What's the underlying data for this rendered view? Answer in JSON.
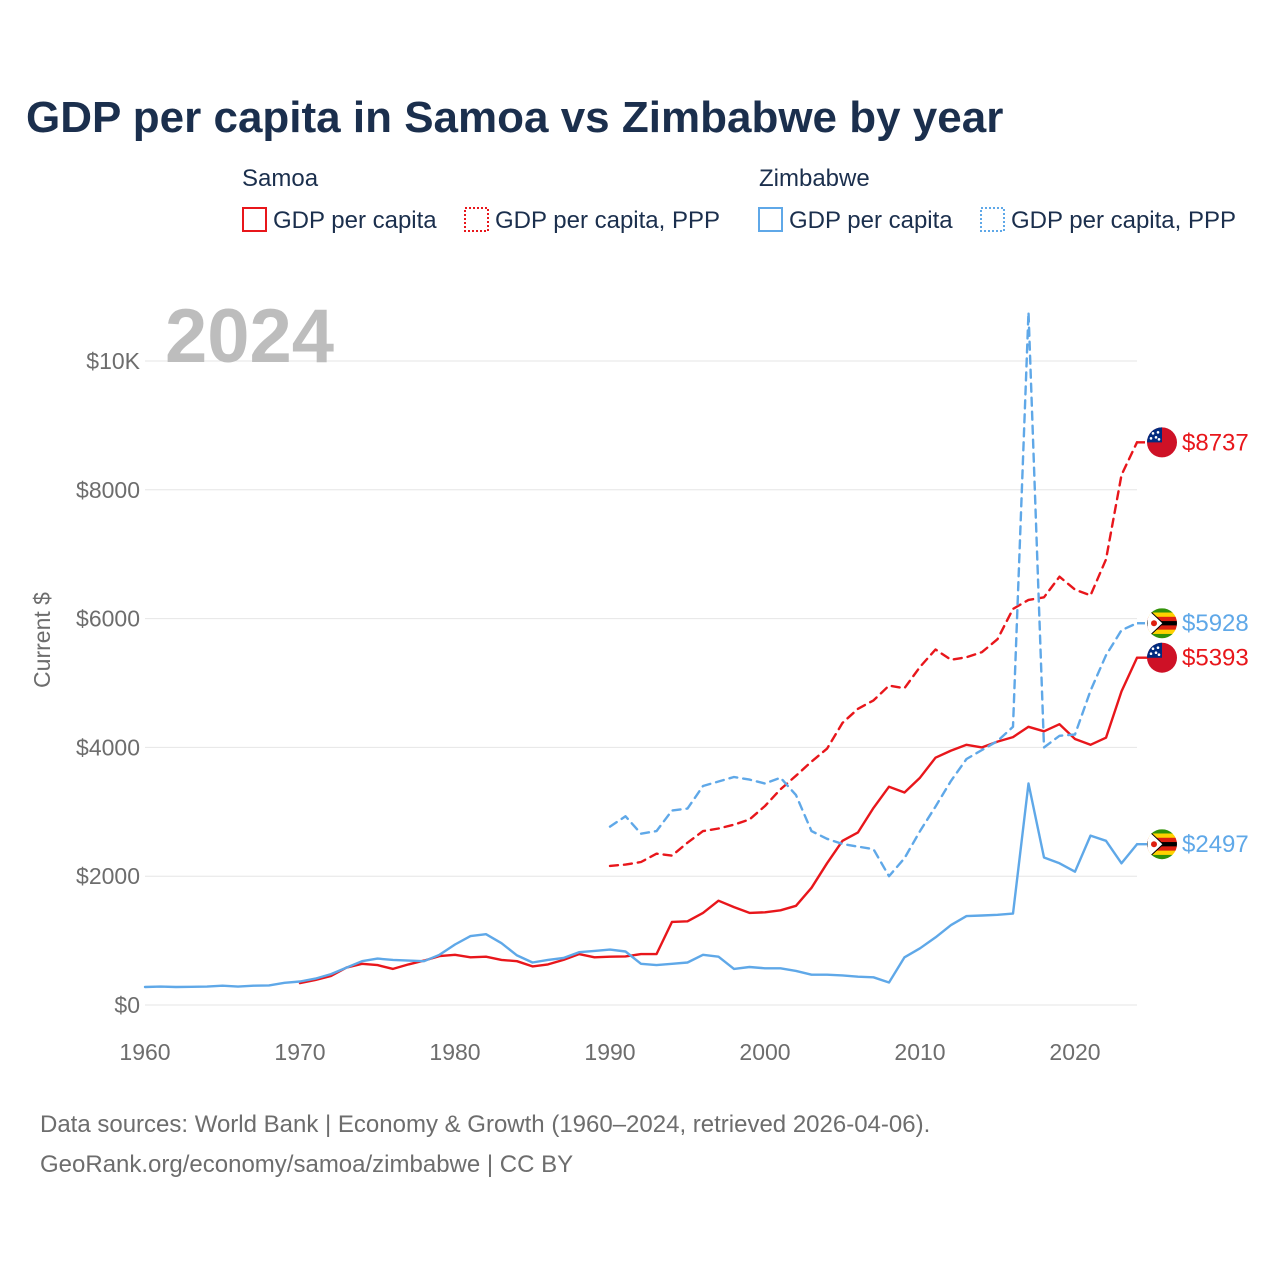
{
  "title": "GDP per capita in Samoa vs Zimbabwe by year",
  "year_watermark": "2024",
  "legend": {
    "groups": [
      {
        "name": "Samoa",
        "color": "#e8161b",
        "items": [
          {
            "label": "GDP per capita",
            "style": "solid"
          },
          {
            "label": "GDP per capita, PPP",
            "style": "dotted"
          }
        ]
      },
      {
        "name": "Zimbabwe",
        "color": "#5fa8e8",
        "items": [
          {
            "label": "GDP per capita",
            "style": "solid"
          },
          {
            "label": "GDP per capita, PPP",
            "style": "dotted"
          }
        ]
      }
    ]
  },
  "source": {
    "line1": "Data sources: World Bank | Economy & Growth (1960–2024, retrieved 2026-04-06).",
    "line2": "GeoRank.org/economy/samoa/zimbabwe | CC BY"
  },
  "chart_data": {
    "type": "line",
    "title": "GDP per capita in Samoa vs Zimbabwe by year",
    "ylabel": "Current $",
    "xlabel": "",
    "xlim": [
      1960,
      2024
    ],
    "ylim": [
      0,
      10500
    ],
    "x_ticks": [
      1960,
      1970,
      1980,
      1990,
      2000,
      2010,
      2020
    ],
    "x_tick_labels": [
      "1960",
      "1970",
      "1980",
      "1990",
      "2000",
      "2010",
      "2020"
    ],
    "y_ticks": [
      0,
      2000,
      4000,
      6000,
      8000,
      10000
    ],
    "y_tick_labels": [
      "$0",
      "$2000",
      "$4000",
      "$6000",
      "$8000",
      "$10K"
    ],
    "grid": true,
    "series": [
      {
        "name": "Samoa GDP per capita",
        "country": "Samoa",
        "color": "#e8161b",
        "dash": "solid",
        "end_label": "$5393",
        "x": [
          1970,
          1971,
          1972,
          1973,
          1974,
          1975,
          1976,
          1977,
          1978,
          1979,
          1980,
          1981,
          1982,
          1983,
          1984,
          1985,
          1986,
          1987,
          1988,
          1989,
          1990,
          1991,
          1992,
          1993,
          1994,
          1995,
          1996,
          1997,
          1998,
          1999,
          2000,
          2001,
          2002,
          2003,
          2004,
          2005,
          2006,
          2007,
          2008,
          2009,
          2010,
          2011,
          2012,
          2013,
          2014,
          2015,
          2016,
          2017,
          2018,
          2019,
          2020,
          2021,
          2022,
          2023,
          2024
        ],
        "values": [
          340,
          390,
          450,
          580,
          640,
          620,
          560,
          630,
          690,
          760,
          780,
          740,
          750,
          700,
          680,
          600,
          630,
          700,
          790,
          740,
          750,
          755,
          790,
          790,
          1290,
          1300,
          1430,
          1620,
          1520,
          1430,
          1440,
          1470,
          1540,
          1820,
          2200,
          2550,
          2680,
          3060,
          3390,
          3300,
          3530,
          3840,
          3950,
          4040,
          4000,
          4090,
          4160,
          4320,
          4250,
          4360,
          4130,
          4040,
          4150,
          4870,
          5393
        ]
      },
      {
        "name": "Samoa GDP per capita, PPP",
        "country": "Samoa",
        "color": "#e8161b",
        "dash": "dashed",
        "end_label": "$8737",
        "x": [
          1990,
          1991,
          1992,
          1993,
          1994,
          1995,
          1996,
          1997,
          1998,
          1999,
          2000,
          2001,
          2002,
          2003,
          2004,
          2005,
          2006,
          2007,
          2008,
          2009,
          2010,
          2011,
          2012,
          2013,
          2014,
          2015,
          2016,
          2017,
          2018,
          2019,
          2020,
          2021,
          2022,
          2023,
          2024
        ],
        "values": [
          2160,
          2180,
          2220,
          2350,
          2320,
          2520,
          2700,
          2740,
          2800,
          2880,
          3090,
          3350,
          3560,
          3780,
          3980,
          4380,
          4600,
          4730,
          4960,
          4920,
          5250,
          5520,
          5360,
          5400,
          5480,
          5680,
          6150,
          6290,
          6330,
          6650,
          6450,
          6360,
          6920,
          8230,
          8737
        ]
      },
      {
        "name": "Zimbabwe GDP per capita",
        "country": "Zimbabwe",
        "color": "#5fa8e8",
        "dash": "solid",
        "end_label": "$2497",
        "x": [
          1960,
          1961,
          1962,
          1963,
          1964,
          1965,
          1966,
          1967,
          1968,
          1969,
          1970,
          1971,
          1972,
          1973,
          1974,
          1975,
          1976,
          1977,
          1978,
          1979,
          1980,
          1981,
          1982,
          1983,
          1984,
          1985,
          1986,
          1987,
          1988,
          1989,
          1990,
          1991,
          1992,
          1993,
          1994,
          1995,
          1996,
          1997,
          1998,
          1999,
          2000,
          2001,
          2002,
          2003,
          2004,
          2005,
          2006,
          2007,
          2008,
          2009,
          2010,
          2011,
          2012,
          2013,
          2014,
          2015,
          2016,
          2017,
          2018,
          2019,
          2020,
          2021,
          2022,
          2023,
          2024
        ],
        "values": [
          280,
          285,
          280,
          282,
          285,
          300,
          285,
          300,
          305,
          345,
          365,
          410,
          480,
          580,
          680,
          720,
          700,
          690,
          680,
          780,
          940,
          1070,
          1100,
          960,
          770,
          660,
          700,
          730,
          820,
          840,
          860,
          830,
          640,
          620,
          640,
          660,
          780,
          750,
          560,
          590,
          570,
          570,
          530,
          470,
          470,
          460,
          440,
          430,
          350,
          740,
          880,
          1050,
          1240,
          1380,
          1390,
          1400,
          1420,
          3440,
          2290,
          2200,
          2070,
          2630,
          2550,
          2200,
          2497
        ]
      },
      {
        "name": "Zimbabwe GDP per capita, PPP",
        "country": "Zimbabwe",
        "color": "#5fa8e8",
        "dash": "dashed",
        "end_label": "$5928",
        "x": [
          1990,
          1991,
          1992,
          1993,
          1994,
          1995,
          1996,
          1997,
          1998,
          1999,
          2000,
          2001,
          2002,
          2003,
          2004,
          2005,
          2006,
          2007,
          2008,
          2009,
          2010,
          2011,
          2012,
          2013,
          2014,
          2015,
          2016,
          2017,
          2018,
          2019,
          2020,
          2021,
          2022,
          2023,
          2024
        ],
        "values": [
          2770,
          2930,
          2660,
          2700,
          3020,
          3050,
          3400,
          3470,
          3540,
          3500,
          3440,
          3530,
          3260,
          2700,
          2580,
          2500,
          2460,
          2420,
          2000,
          2280,
          2700,
          3080,
          3480,
          3820,
          3960,
          4100,
          4320,
          10760,
          4000,
          4180,
          4200,
          4880,
          5430,
          5820,
          5928
        ]
      }
    ]
  }
}
